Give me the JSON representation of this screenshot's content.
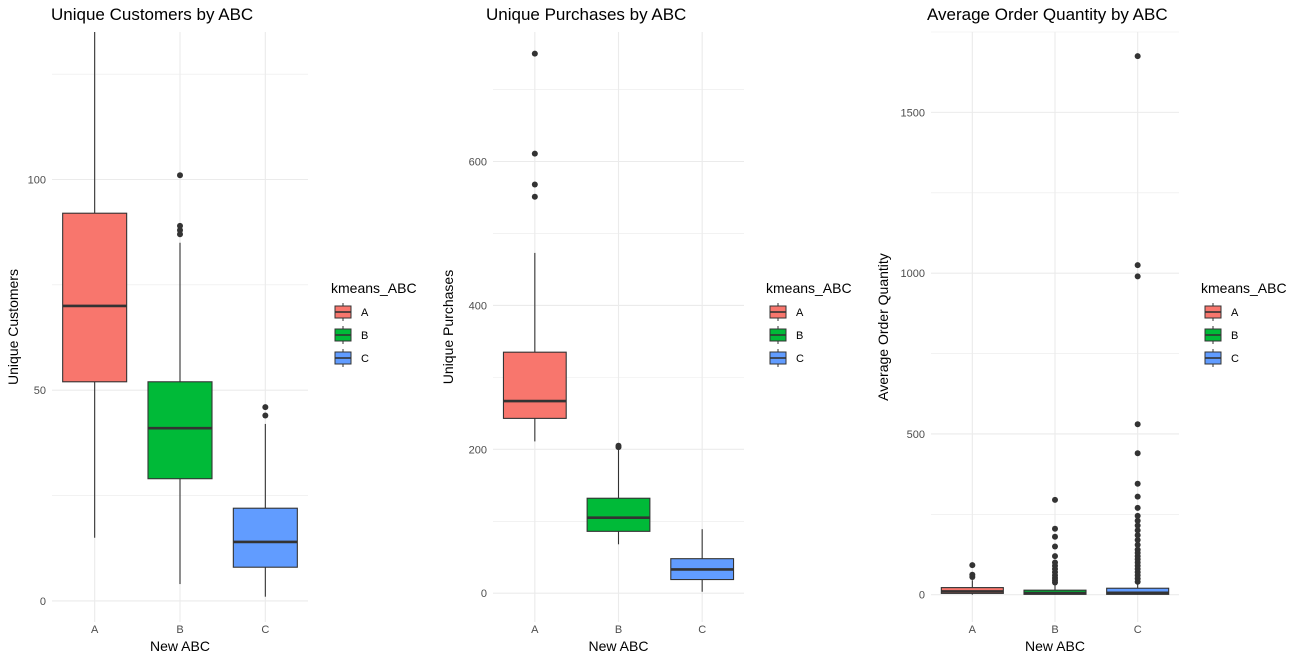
{
  "colors": {
    "A": "#F8766D",
    "B": "#00BA38",
    "C": "#619CFF",
    "grid": "#EBEBEB",
    "ink": "#333333"
  },
  "legend": {
    "title": "kmeans_ABC",
    "items": [
      "A",
      "B",
      "C"
    ]
  },
  "chart_data": [
    {
      "type": "box",
      "title": "Unique Customers by ABC",
      "xlabel": "New ABC",
      "ylabel": "Unique Customers",
      "categories": [
        "A",
        "B",
        "C"
      ],
      "ylim": [
        -5,
        135
      ],
      "yticks": [
        0,
        50,
        100
      ],
      "grid": true,
      "legend_position": "right",
      "boxes": [
        {
          "name": "A",
          "q1": 52,
          "median": 70,
          "q3": 92,
          "whisker_low": 15,
          "whisker_high": 135,
          "outliers": []
        },
        {
          "name": "B",
          "q1": 29,
          "median": 41,
          "q3": 52,
          "whisker_low": 4,
          "whisker_high": 85,
          "outliers": [
            87,
            88,
            89,
            101
          ]
        },
        {
          "name": "C",
          "q1": 8,
          "median": 14,
          "q3": 22,
          "whisker_low": 1,
          "whisker_high": 42,
          "outliers": [
            44,
            46
          ]
        }
      ]
    },
    {
      "type": "box",
      "title": "Unique Purchases by ABC",
      "xlabel": "New ABC",
      "ylabel": "Unique Purchases",
      "categories": [
        "A",
        "B",
        "C"
      ],
      "ylim": [
        -40,
        780
      ],
      "yticks": [
        0,
        200,
        400,
        600
      ],
      "grid": true,
      "legend_position": "right",
      "boxes": [
        {
          "name": "A",
          "q1": 243,
          "median": 267,
          "q3": 335,
          "whisker_low": 211,
          "whisker_high": 473,
          "outliers": [
            551,
            568,
            611,
            750
          ]
        },
        {
          "name": "B",
          "q1": 86,
          "median": 105,
          "q3": 132,
          "whisker_low": 68,
          "whisker_high": 200,
          "outliers": [
            203,
            205
          ]
        },
        {
          "name": "C",
          "q1": 19,
          "median": 33,
          "q3": 48,
          "whisker_low": 2,
          "whisker_high": 89,
          "outliers": []
        }
      ]
    },
    {
      "type": "box",
      "title": "Average Order Quantity by ABC",
      "xlabel": "New ABC",
      "ylabel": "Average Order Quantity",
      "categories": [
        "A",
        "B",
        "C"
      ],
      "ylim": [
        -85,
        1750
      ],
      "yticks": [
        0,
        500,
        1000,
        1500
      ],
      "grid": true,
      "legend_position": "right",
      "boxes": [
        {
          "name": "A",
          "q1": 4,
          "median": 10,
          "q3": 22,
          "whisker_low": 0,
          "whisker_high": 45,
          "outliers": [
            55,
            62,
            92
          ]
        },
        {
          "name": "B",
          "q1": 1,
          "median": 5,
          "q3": 14,
          "whisker_low": 0,
          "whisker_high": 30,
          "outliers": [
            38,
            45,
            52,
            60,
            70,
            80,
            90,
            100,
            120,
            150,
            180,
            205,
            295
          ]
        },
        {
          "name": "C",
          "q1": 1,
          "median": 6,
          "q3": 20,
          "whisker_low": 0,
          "whisker_high": 35,
          "outliers": [
            40,
            50,
            60,
            70,
            80,
            90,
            100,
            110,
            120,
            130,
            140,
            155,
            170,
            185,
            200,
            215,
            230,
            245,
            270,
            305,
            345,
            440,
            530,
            990,
            1025,
            1675
          ]
        }
      ]
    }
  ]
}
